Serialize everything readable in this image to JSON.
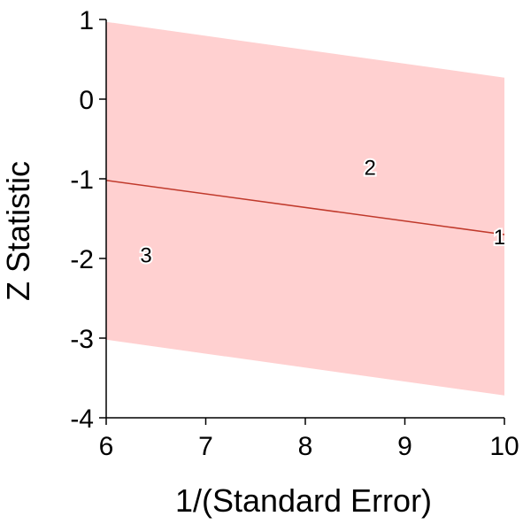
{
  "chart_data": {
    "type": "scatter",
    "title": "",
    "xlabel": "1/(Standard Error)",
    "ylabel": "Z Statistic",
    "xlim": [
      6,
      10
    ],
    "ylim": [
      -4,
      1
    ],
    "xticks": [
      6,
      7,
      8,
      9,
      10
    ],
    "yticks": [
      -4,
      -3,
      -2,
      -1,
      0,
      1
    ],
    "xtick_labels": [
      "6",
      "7",
      "8",
      "9",
      "10"
    ],
    "ytick_labels": [
      "-4",
      "-3",
      "-2",
      "-1",
      "0",
      "1"
    ],
    "points": [
      {
        "label": "1",
        "x": 9.95,
        "y": -1.72
      },
      {
        "label": "2",
        "x": 8.65,
        "y": -0.85
      },
      {
        "label": "3",
        "x": 6.4,
        "y": -1.95
      }
    ],
    "regression_line": {
      "x": [
        6,
        10
      ],
      "y": [
        -1.02,
        -1.7
      ],
      "color": "#c0392b"
    },
    "confidence_band": {
      "x": [
        6,
        10
      ],
      "upper": [
        0.97,
        0.27
      ],
      "lower": [
        -3.02,
        -3.72
      ],
      "color": "#ffd0d0"
    },
    "grid": false,
    "axes_color": "#000000"
  }
}
